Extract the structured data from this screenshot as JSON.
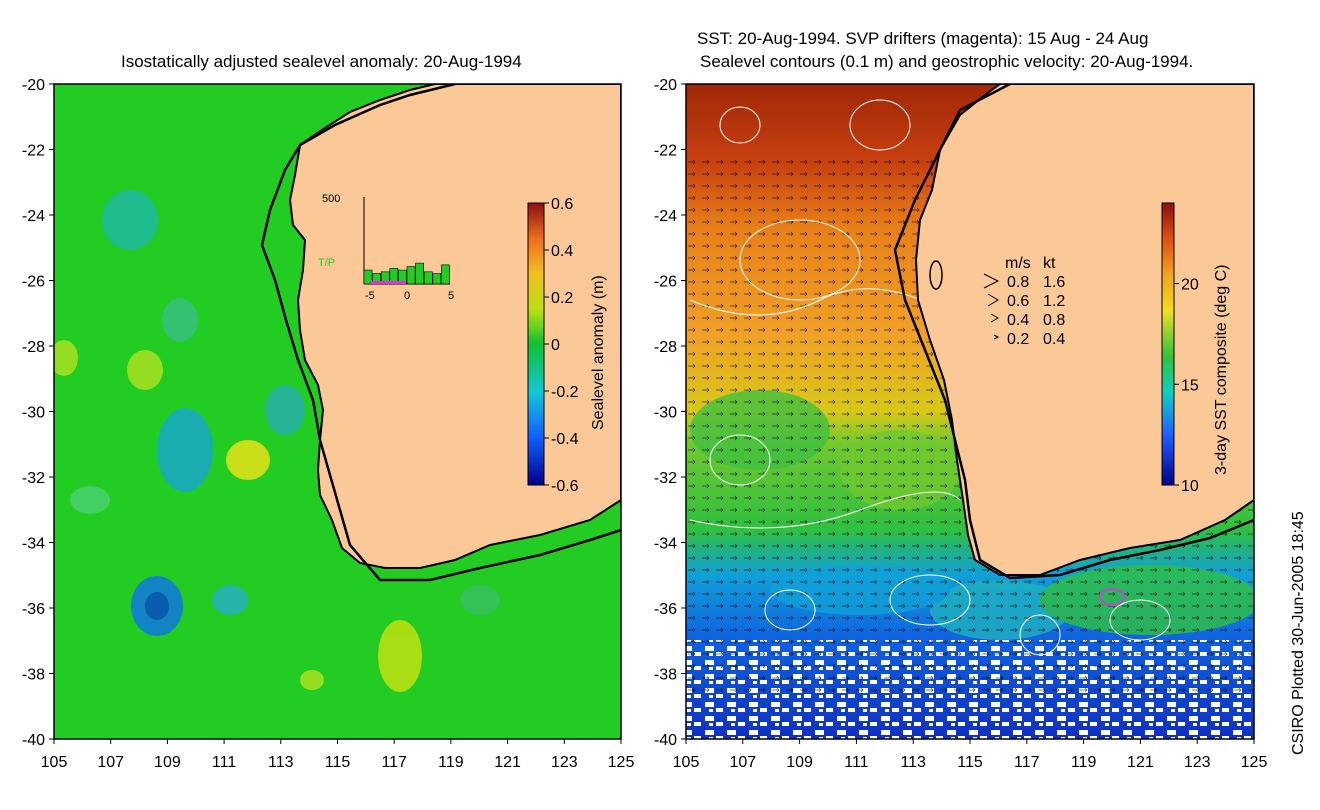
{
  "left_panel": {
    "title": "Isostatically adjusted sealevel anomaly: 20-Aug-1994",
    "lat_ticks": [
      "-20",
      "-22",
      "-24",
      "-26",
      "-28",
      "-30",
      "-32",
      "-34",
      "-36",
      "-38",
      "-40"
    ],
    "lon_ticks": [
      "105",
      "107",
      "109",
      "111",
      "113",
      "115",
      "117",
      "119",
      "121",
      "123",
      "125"
    ],
    "colorbar": {
      "label": "Sealevel anomaly (m)",
      "ticks": [
        "0.6",
        "0.4",
        "0.2",
        "0",
        "-0.2",
        "-0.4",
        "-0.6"
      ],
      "range": [
        -0.6,
        0.6
      ]
    },
    "inset": {
      "ymax_label": "500",
      "mission_label": "T/P",
      "x_ticks": [
        "-5",
        "0",
        "5"
      ],
      "bar_counts": [
        80,
        60,
        70,
        90,
        80,
        100,
        120,
        70,
        60,
        110
      ]
    }
  },
  "right_panel": {
    "title_line1": "SST: 20-Aug-1994. SVP drifters (magenta): 15 Aug - 24 Aug",
    "title_line2": "Sealevel contours (0.1 m) and geostrophic velocity: 20-Aug-1994.",
    "lat_ticks": [
      "-20",
      "-22",
      "-24",
      "-26",
      "-28",
      "-30",
      "-32",
      "-34",
      "-36",
      "-38",
      "-40"
    ],
    "lon_ticks": [
      "105",
      "107",
      "109",
      "111",
      "113",
      "115",
      "117",
      "119",
      "121",
      "123",
      "125"
    ],
    "colorbar": {
      "label": "3-day SST composite (deg C)",
      "ticks": [
        "20",
        "15",
        "10"
      ],
      "range": [
        10,
        24
      ]
    },
    "velocity_legend": {
      "header_ms": "m/s",
      "header_kt": "kt",
      "rows": [
        {
          "ms": "0.8",
          "kt": "1.6"
        },
        {
          "ms": "0.6",
          "kt": "1.2"
        },
        {
          "ms": "0.4",
          "kt": "0.8"
        },
        {
          "ms": "0.2",
          "kt": "0.4"
        }
      ]
    }
  },
  "credit": "CSIRO Plotted 30-Jun-2005 18:45",
  "colors": {
    "land": "#fbc898",
    "ocean_sla": "#22cc22",
    "coast": "#000000",
    "contour": "#ffffff",
    "drifter": "#cc44cc"
  }
}
